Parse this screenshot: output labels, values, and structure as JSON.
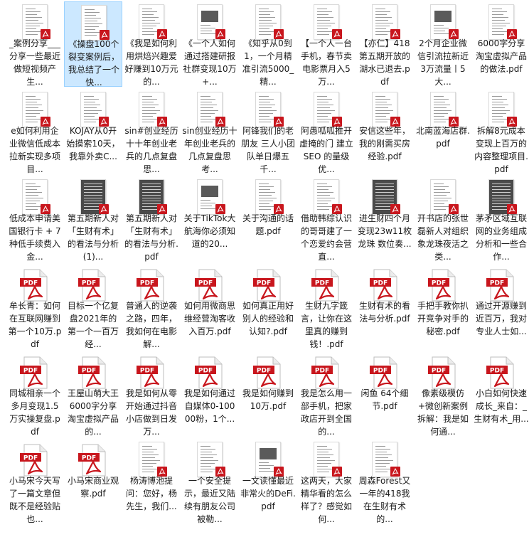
{
  "files": [
    {
      "name": "_案例分享___分享一些最近做短视频产生...",
      "icon": "doc",
      "selected": false
    },
    {
      "name": "《操盘100个裂变案例后，我总结了一个快...",
      "icon": "doc",
      "selected": true
    },
    {
      "name": "《我是如何利用烘焙兴趣爱好赚到10万元的...",
      "icon": "doc",
      "selected": false
    },
    {
      "name": "《一个人如何通过搭建研报社群变现10万+...",
      "icon": "image",
      "selected": false
    },
    {
      "name": "《知乎从0到1，一个月精准引流5000_精...",
      "icon": "doc",
      "selected": false
    },
    {
      "name": "【一个人一台手机，春节卖电影票月入5万...",
      "icon": "doc",
      "selected": false
    },
    {
      "name": "【亦仁】418第五期开放的湖水已退去.pdf",
      "icon": "doc",
      "selected": false
    },
    {
      "name": "2个月企业微信引流拉新近3万流量丨5大...",
      "icon": "image",
      "selected": false
    },
    {
      "name": "6000字分享淘宝虚拟产品的做法.pdf",
      "icon": "doc",
      "selected": false
    },
    {
      "name": "e如何利用企业微信低成本拉新实现多项目...",
      "icon": "doc",
      "selected": false
    },
    {
      "name": "KOJAY从0开始摸索10天，我靠外卖C...",
      "icon": "doc",
      "selected": false
    },
    {
      "name": "sin#创业经历十十年创业老兵的几点复盘思...",
      "icon": "doc",
      "selected": false
    },
    {
      "name": "sin创业经历十年创业老兵的几点复盘思考...",
      "icon": "doc",
      "selected": false
    },
    {
      "name": "阿锋我们的老朋友 三人小团队单日爆五千...",
      "icon": "doc",
      "selected": false
    },
    {
      "name": "阿愚呱呱推开虚掩的门 建立 SEO 的量级优...",
      "icon": "doc",
      "selected": false
    },
    {
      "name": "安信这些年，我的刚需买房经验.pdf",
      "icon": "doc",
      "selected": false
    },
    {
      "name": "北南蓝海店群.pdf",
      "icon": "doc",
      "selected": false
    },
    {
      "name": "拆解8元成本变现上百万的内容整理项目.pdf",
      "icon": "doc",
      "selected": false
    },
    {
      "name": "低成本申请美国银行卡 + 7种低手续费入金...",
      "icon": "doc",
      "selected": false
    },
    {
      "name": "第五期新人对「生财有术」的看法与分析(1)...",
      "icon": "dark",
      "selected": false
    },
    {
      "name": "第五期新人对「生财有术」的看法与分析.pdf",
      "icon": "dark",
      "selected": false
    },
    {
      "name": "关于TikTok大航海你必须知道的20...",
      "icon": "image",
      "selected": false
    },
    {
      "name": "关于沟通的话题.pdf",
      "icon": "doc",
      "selected": false
    },
    {
      "name": "借助韩综认识的哥哥建了一个恋爱约会营直...",
      "icon": "doc",
      "selected": false
    },
    {
      "name": "进生财四个月变现23w11枚龙珠 数位奏...",
      "icon": "dark",
      "selected": false
    },
    {
      "name": "开书店的张世磊新人对组织象龙珠夜活之类...",
      "icon": "doc",
      "selected": false
    },
    {
      "name": "茅矛区域互联网的业务组成分析和一些合作...",
      "icon": "dark",
      "selected": false
    },
    {
      "name": "牟长青：如何在互联网赚到第一个10万.pdf",
      "icon": "pdf",
      "selected": false
    },
    {
      "name": "目标一个亿复盘2021年的第一个一百万经...",
      "icon": "pdf",
      "selected": false
    },
    {
      "name": "普通人的逆袭之路，四年，我如何在电影解...",
      "icon": "pdf",
      "selected": false
    },
    {
      "name": "如何用微商思维经营淘客收入百万.pdf",
      "icon": "pdf",
      "selected": false
    },
    {
      "name": "如何真正用好别人的经验和认知?.pdf",
      "icon": "pdf",
      "selected": false
    },
    {
      "name": "生财九字箴言，让你在这里真的赚到钱！.pdf",
      "icon": "pdf",
      "selected": false
    },
    {
      "name": "生财有术的看法与分析.pdf",
      "icon": "pdf",
      "selected": false
    },
    {
      "name": "手把手教你扒开竞争对手的秘密.pdf",
      "icon": "pdf",
      "selected": false
    },
    {
      "name": "通过开源赚到近百万，我对专业人士如...",
      "icon": "pdf",
      "selected": false
    },
    {
      "name": "同城相亲一个多月变现1.5万实操复盘.pdf",
      "icon": "pdf",
      "selected": false
    },
    {
      "name": "王屋山萌大王6000字分享淘宝虚拟产品的...",
      "icon": "pdf",
      "selected": false
    },
    {
      "name": "我是如何从零开始通过抖音小店做到日发万...",
      "icon": "pdf",
      "selected": false
    },
    {
      "name": "我是如何通过自媒体0-10000粉，1个...",
      "icon": "pdf",
      "selected": false
    },
    {
      "name": "我是如何赚到10万.pdf",
      "icon": "pdf",
      "selected": false
    },
    {
      "name": "我是怎么用一部手机，把家政店开到全国的...",
      "icon": "pdf",
      "selected": false
    },
    {
      "name": "闲鱼 64个细节.pdf",
      "icon": "pdf",
      "selected": false
    },
    {
      "name": "像素级模仿+微创新案例拆解：我是如何通...",
      "icon": "pdf",
      "selected": false
    },
    {
      "name": "小白如何快速成长_来自：_生财有术_用...",
      "icon": "pdf",
      "selected": false
    },
    {
      "name": "小马宋今天写了一篇文章但既不是经验贴也...",
      "icon": "pdf",
      "selected": false
    },
    {
      "name": "小马宋商业观察.pdf",
      "icon": "pdf",
      "selected": false
    },
    {
      "name": "杨涛博池提问：您好，杨先生，我们...",
      "icon": "doc",
      "selected": false
    },
    {
      "name": "一个安全提示，最近又陆续有朋友公司被勒...",
      "icon": "doc",
      "selected": false
    },
    {
      "name": "一文读懂最近非常火的DeFi.pdf",
      "icon": "image",
      "selected": false
    },
    {
      "name": "这两天，大家精华看的怎么样了？感觉如何...",
      "icon": "doc",
      "selected": false
    },
    {
      "name": "周森Forest又一年的418我在生财有术的...",
      "icon": "doc",
      "selected": false
    }
  ],
  "colors": {
    "pdf_red": "#c8161d",
    "selection": "#cce8ff",
    "selection_border": "#99d1ff"
  }
}
